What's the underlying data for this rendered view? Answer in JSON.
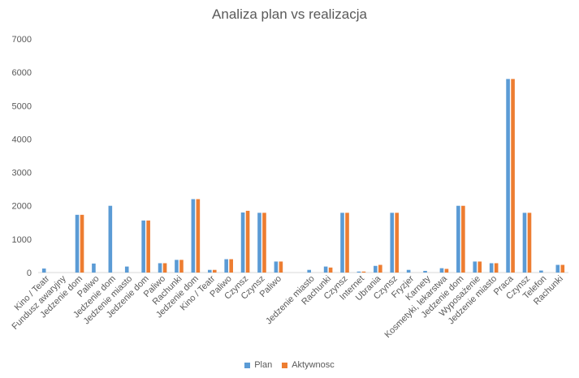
{
  "chart_data": {
    "type": "bar",
    "title": "Analiza plan vs realizacja",
    "xlabel": "",
    "ylabel": "",
    "ylim": [
      0,
      7000
    ],
    "yticks": [
      0,
      1000,
      2000,
      3000,
      4000,
      5000,
      6000,
      7000
    ],
    "grid": false,
    "legend_position": "bottom",
    "categories": [
      "Kino / Teatr",
      "Fundusz awaryjny",
      "Jedzenie dom",
      "Paliwo",
      "Jedzenie dom",
      "Jedzenie miasto",
      "Jedzenie dom",
      "Paliwo",
      "Rachunki",
      "Jedzenie dom",
      "Kino / Teatr",
      "Paliwo",
      "Czynsz",
      "Czynsz",
      "Paliwo",
      "",
      "Jedzenie miasto",
      "Rachunki",
      "Czynsz",
      "Internet",
      "Ubrania",
      "Czynsz",
      "Fryzjer",
      "Karnety",
      "Kosmetyki, lekarstwa",
      "Jedzenie dom",
      "Wyposażenie",
      "Jedzenie miasto",
      "Praca",
      "Czynsz",
      "Telefon",
      "Rachunki"
    ],
    "series": [
      {
        "name": "Plan",
        "color": "#5B9BD5",
        "values": [
          120,
          0,
          1730,
          270,
          2000,
          180,
          1560,
          280,
          380,
          2200,
          80,
          400,
          1800,
          1790,
          330,
          0,
          80,
          180,
          1790,
          30,
          200,
          1790,
          80,
          50,
          130,
          2000,
          330,
          280,
          5800,
          1790,
          60,
          230
        ]
      },
      {
        "name": "Aktywnosc",
        "color": "#ED7D31",
        "values": [
          0,
          0,
          1730,
          0,
          0,
          0,
          1560,
          280,
          380,
          2200,
          80,
          400,
          1850,
          1790,
          330,
          0,
          0,
          150,
          1790,
          30,
          230,
          1790,
          0,
          0,
          110,
          2000,
          330,
          280,
          5800,
          1790,
          0,
          230
        ]
      }
    ]
  }
}
